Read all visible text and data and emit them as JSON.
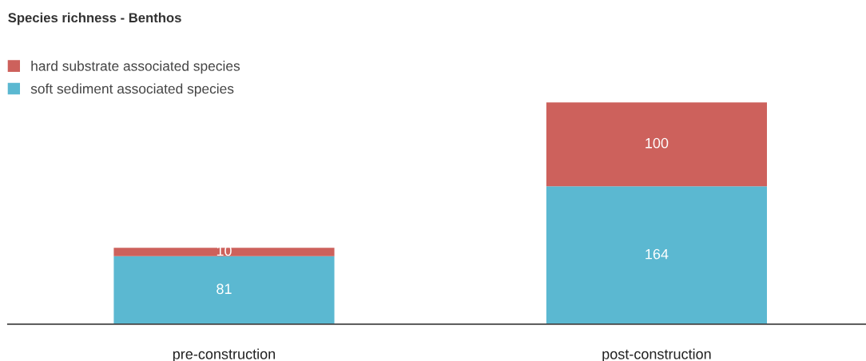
{
  "chart_data": {
    "type": "bar",
    "title": "Species richness - Benthos",
    "categories": [
      "pre-construction",
      "post-construction"
    ],
    "stacked": true,
    "data_labels": true,
    "legend": "top left",
    "grid": false,
    "series": [
      {
        "name": "soft sediment associated species",
        "color": "#5bb8d1",
        "values": [
          81,
          164
        ]
      },
      {
        "name": "hard substrate associated species",
        "color": "#cd615c",
        "values": [
          10,
          100
        ]
      }
    ]
  }
}
